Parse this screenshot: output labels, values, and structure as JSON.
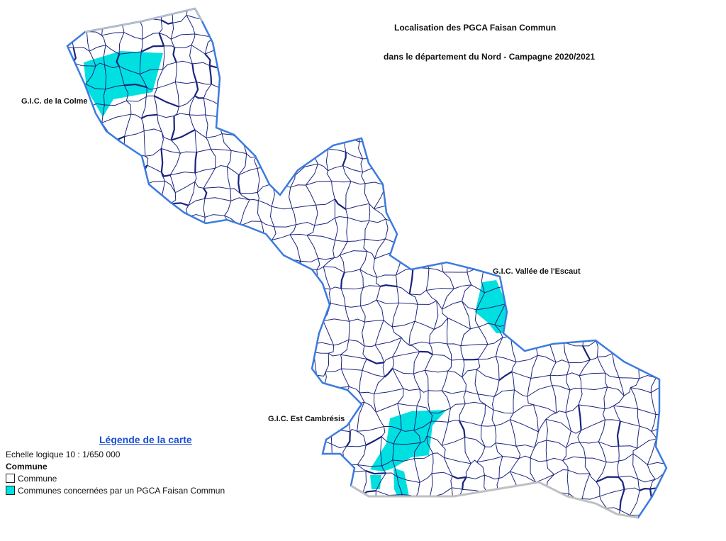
{
  "title": {
    "line1": "Localisation des PGCA Faisan Commun",
    "line2": "dans le département du Nord - Campagne 2020/2021"
  },
  "labels": {
    "colme": "G.I.C. de la Colme",
    "escaut": "G.I.C. Vallée de l'Escaut",
    "cambresis": "G.I.C. Est Cambrésis"
  },
  "legend": {
    "title": "Légende de la carte",
    "scale": "Echelle logique 10 : 1/650 000",
    "group": "Commune",
    "items": [
      {
        "label": "Commune",
        "color": "#ffffff"
      },
      {
        "label": "Communes concernées par un PGCA Faisan Commun",
        "color": "#00e0e0"
      }
    ]
  },
  "colors": {
    "commune_border": "#1a237e",
    "border_belgium": "#3b7be0",
    "border_south": "#c0c0c0",
    "highlight": "#00e0e0"
  }
}
